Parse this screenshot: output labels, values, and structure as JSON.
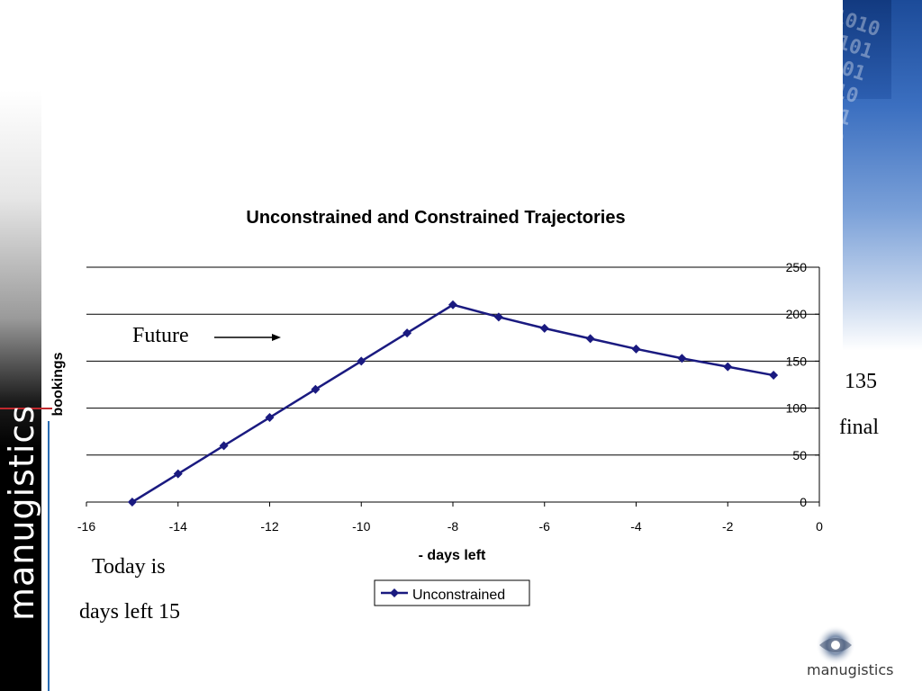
{
  "slide": {
    "future_label": "Future",
    "today_label": "Today is",
    "days_left_label": "days left 15",
    "final_value": "135",
    "final_label": "final",
    "brand_name": "manugistics",
    "logo_text": "manugistics"
  },
  "colors": {
    "series": "#1a1a80",
    "gridline": "#000000",
    "left_strip_accent": "#c0282d",
    "left_strip_line": "#2a6db3",
    "panel_blue": "#2c5eb0"
  },
  "chart_data": {
    "type": "line",
    "title": "Unconstrained and Constrained Trajectories",
    "xlabel": "- days left",
    "ylabel": "bookings",
    "xlim": [
      -16,
      0
    ],
    "ylim": [
      0,
      250
    ],
    "x_ticks": [
      -16,
      -14,
      -12,
      -10,
      -8,
      -6,
      -4,
      -2,
      0
    ],
    "y_ticks": [
      0,
      50,
      100,
      150,
      200,
      250
    ],
    "y_axis_side": "right",
    "grid": "horizontal",
    "legend": "bottom-center",
    "series": [
      {
        "name": "Unconstrained",
        "marker": "diamond",
        "x": [
          -15,
          -14,
          -13,
          -12,
          -11,
          -10,
          -9,
          -8,
          -7,
          -6,
          -5,
          -4,
          -3,
          -2,
          -1
        ],
        "y": [
          0,
          30,
          60,
          90,
          120,
          150,
          180,
          210,
          197,
          185,
          174,
          163,
          153,
          144,
          135
        ]
      }
    ]
  }
}
